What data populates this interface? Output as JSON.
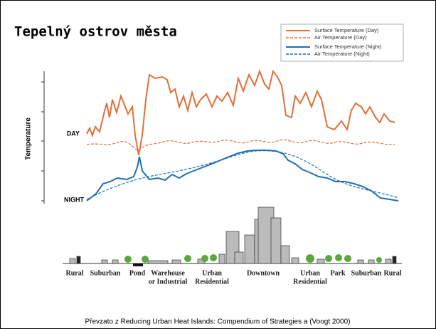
{
  "title": "Tepelný ostrov města",
  "legend": [
    "Surface Temperature (Day)",
    "Air Temperature  (Day)",
    "Surface Temperature (Night)",
    "Air Temperature (Night)"
  ],
  "axis_label": "Temperature",
  "day_label": "DAY",
  "night_label": "NIGHT",
  "zones": [
    {
      "lines": [
        "Rural"
      ]
    },
    {
      "lines": [
        "Suburban"
      ]
    },
    {
      "lines": [
        "Pond"
      ]
    },
    {
      "lines": [
        "Warehouse",
        "or Industrial"
      ]
    },
    {
      "lines": [
        "Urban",
        "Residential"
      ]
    },
    {
      "lines": [
        "Downtown"
      ]
    },
    {
      "lines": [
        "Urban",
        "Residential"
      ]
    },
    {
      "lines": [
        "Park"
      ]
    },
    {
      "lines": [
        "Suburban"
      ]
    },
    {
      "lines": [
        "Rural"
      ]
    }
  ],
  "source": "Převzato z Reducing Urban Heat Islands: Compendium of Strategies a (Voogt 2000)"
}
